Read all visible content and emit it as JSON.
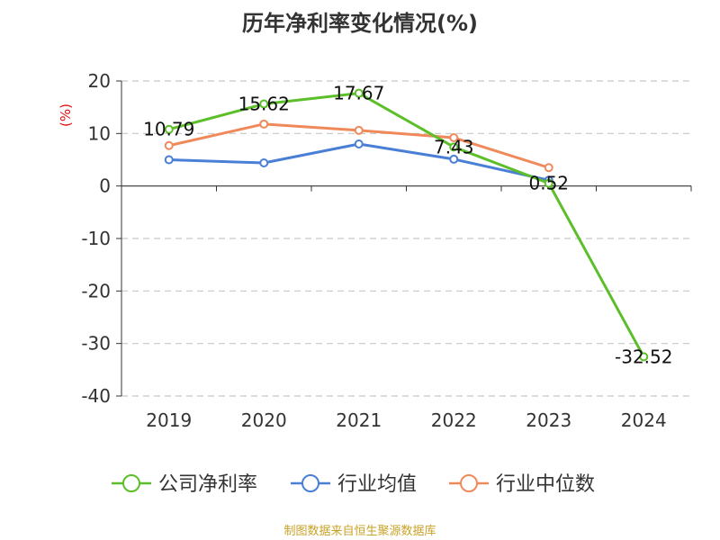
{
  "title": "历年净利率变化情况(%)",
  "source": "制图数据来自恒生聚源数据库",
  "chart_data": {
    "type": "line",
    "categories": [
      "2019",
      "2020",
      "2021",
      "2022",
      "2023",
      "2024"
    ],
    "ylabel": "(%)",
    "ylim": [
      -40,
      20
    ],
    "yticks": [
      20,
      10,
      0,
      -10,
      -20,
      -30,
      -40
    ],
    "grid": true,
    "legend_position": "bottom",
    "series": [
      {
        "name": "公司净利率",
        "color": "#5cbf2a",
        "values": [
          10.79,
          15.62,
          17.67,
          7.43,
          0.52,
          -32.52
        ],
        "labels": [
          "10.79",
          "15.62",
          "17.67",
          "7.43",
          "0.52",
          "-32.52"
        ]
      },
      {
        "name": "行业均值",
        "color": "#4a7fd6",
        "values": [
          5.0,
          4.4,
          8.0,
          5.1,
          1.1,
          null
        ]
      },
      {
        "name": "行业中位数",
        "color": "#f0895a",
        "values": [
          7.7,
          11.8,
          10.6,
          9.2,
          3.5,
          null
        ]
      }
    ]
  }
}
